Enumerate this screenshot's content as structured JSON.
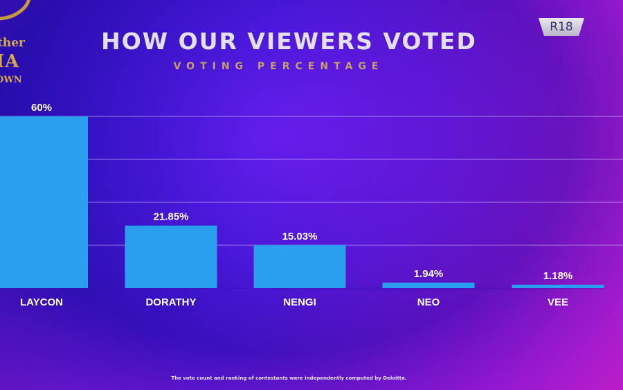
{
  "header": {
    "logo_line1": "ther",
    "logo_line2": "IA",
    "logo_line3": "OWN",
    "rating_badge": "R18"
  },
  "chart_data": {
    "type": "bar",
    "title": "HOW OUR VIEWERS VOTED",
    "subtitle": "VOTING PERCENTAGE",
    "categories": [
      "LAYCON",
      "DORATHY",
      "NENGI",
      "NEO",
      "VEE"
    ],
    "values": [
      60,
      21.85,
      15.03,
      1.94,
      1.18
    ],
    "value_labels": [
      "60%",
      "21.85%",
      "15.03%",
      "1.94%",
      "1.18%"
    ],
    "ylim": [
      0,
      60
    ],
    "grid": true,
    "bar_color": "#2a9ff0"
  },
  "footer": {
    "note": "The vote count and ranking of contestants were independently computed by Deloitte."
  }
}
